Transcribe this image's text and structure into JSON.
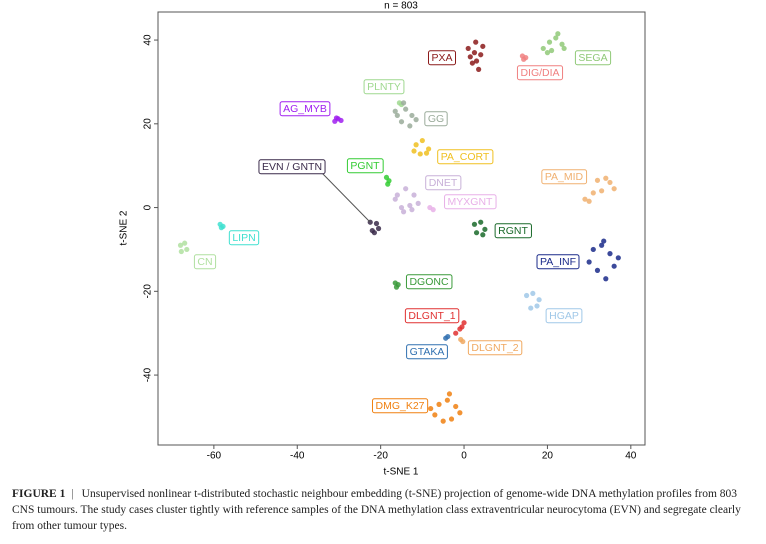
{
  "chart_data": {
    "type": "scatter",
    "title": "n = 803",
    "x_label": "t-SNE 1",
    "y_label": "t-SNE 2",
    "xlim": [
      -73.4,
      43.4
    ],
    "ylim": [
      -56.7,
      46.7
    ],
    "xticks": [
      -60,
      -40,
      -20,
      0,
      20,
      40
    ],
    "yticks": [
      -40,
      -20,
      0,
      20,
      40
    ],
    "series": [
      {
        "name": "PXA",
        "color": "#8b1a1a",
        "x": [
          1,
          2.5,
          4,
          3,
          2,
          3.5,
          1.5,
          4.5,
          2.8
        ],
        "y": [
          38,
          37,
          36.5,
          35,
          34.5,
          33,
          36,
          38.5,
          39.5
        ]
      },
      {
        "name": "DIG/DIA",
        "color": "#f08080",
        "x": [
          14,
          14.8,
          14.3
        ],
        "y": [
          36.2,
          35.8,
          35.4
        ]
      },
      {
        "name": "SEGA",
        "color": "#90c978",
        "x": [
          19,
          20.5,
          22,
          23.5,
          21,
          24,
          22.5,
          20
        ],
        "y": [
          38,
          39.5,
          40.5,
          39,
          37.5,
          38,
          41.5,
          37
        ]
      },
      {
        "name": "PLNTY",
        "color": "#9fd88f",
        "x": [
          -15.5,
          -15
        ],
        "y": [
          25,
          24.6
        ]
      },
      {
        "name": "GG",
        "color": "#9aab9a",
        "x": [
          -16,
          -14,
          -12.5,
          -15,
          -13,
          -14.5,
          -11.5,
          -16.5
        ],
        "y": [
          22,
          23.5,
          22,
          20.5,
          19.5,
          25,
          21,
          23
        ]
      },
      {
        "name": "AG_MYB",
        "color": "#a020f0",
        "x": [
          -31,
          -30.2,
          -29.5,
          -30.6
        ],
        "y": [
          20.6,
          21.2,
          20.8,
          21.4
        ]
      },
      {
        "name": "PA_CORT",
        "color": "#f0c020",
        "x": [
          -11.5,
          -10,
          -8.5,
          -10.5,
          -9,
          -12
        ],
        "y": [
          15,
          16,
          14,
          12.8,
          13,
          13.5
        ]
      },
      {
        "name": "PGNT",
        "color": "#33cc33",
        "x": [
          -18.6,
          -18,
          -18.3
        ],
        "y": [
          7.2,
          6.4,
          5.6
        ]
      },
      {
        "name": "DNET",
        "color": "#c8b0d8",
        "x": [
          -16,
          -14,
          -12,
          -13,
          -15,
          -11,
          -14.5,
          -12.5,
          -16.5
        ],
        "y": [
          3,
          4.5,
          3,
          0.5,
          0,
          1,
          -1,
          -0.5,
          2
        ]
      },
      {
        "name": "MYXGNT",
        "color": "#e8b0e8",
        "x": [
          -8.2,
          -7.4
        ],
        "y": [
          0,
          -0.5
        ]
      },
      {
        "name": "EVN / GNTN",
        "color": "#3a2a4a",
        "x": [
          -22.5,
          -21,
          -20.5,
          -22,
          -21.5
        ],
        "y": [
          -3.5,
          -3.8,
          -5,
          -5.5,
          -6
        ]
      },
      {
        "name": "LIPN",
        "color": "#40e0d0",
        "x": [
          -58.5,
          -57.8,
          -58.2
        ],
        "y": [
          -4,
          -4.5,
          -4.8
        ]
      },
      {
        "name": "CN",
        "color": "#b0e0a0",
        "x": [
          -68,
          -67,
          -66.5,
          -67.8
        ],
        "y": [
          -9,
          -8.5,
          -10,
          -10.5
        ]
      },
      {
        "name": "RGNT",
        "color": "#1a6a2a",
        "x": [
          2.5,
          4,
          5,
          3,
          4.5
        ],
        "y": [
          -4,
          -3.5,
          -5.2,
          -6,
          -6.5
        ]
      },
      {
        "name": "PA_MID",
        "color": "#f0b070",
        "x": [
          29,
          31,
          33,
          35,
          34,
          30,
          32,
          36
        ],
        "y": [
          2,
          3.5,
          4,
          6,
          7,
          1.5,
          6.5,
          4.5
        ]
      },
      {
        "name": "PA_INF",
        "color": "#1a2a8a",
        "x": [
          31,
          33,
          35,
          36,
          32,
          34,
          37,
          30,
          33.5
        ],
        "y": [
          -10,
          -9,
          -11,
          -14,
          -15,
          -17,
          -12,
          -13,
          -8
        ]
      },
      {
        "name": "HGAP",
        "color": "#a0c8e8",
        "x": [
          15,
          16.5,
          18,
          16,
          17.5
        ],
        "y": [
          -21,
          -20.5,
          -22,
          -24,
          -23.5
        ]
      },
      {
        "name": "DGONC",
        "color": "#3a9a3a",
        "x": [
          -16.5,
          -15.8,
          -16.2
        ],
        "y": [
          -18,
          -18.4,
          -19
        ]
      },
      {
        "name": "DLGNT_1",
        "color": "#e03030",
        "x": [
          -2,
          -1,
          0,
          -0.5
        ],
        "y": [
          -30,
          -29,
          -27.5,
          -28.5
        ]
      },
      {
        "name": "DLGNT_2",
        "color": "#f0a860",
        "x": [
          -0.8,
          -0.3
        ],
        "y": [
          -31.5,
          -32
        ]
      },
      {
        "name": "GTAKA",
        "color": "#3070b0",
        "x": [
          -4.4,
          -3.9
        ],
        "y": [
          -31.2,
          -30.8
        ]
      },
      {
        "name": "DMG_K27",
        "color": "#f08010",
        "x": [
          -8,
          -6,
          -4,
          -2,
          -1,
          -3,
          -5,
          -7,
          -3.5
        ],
        "y": [
          -48,
          -47,
          -46,
          -47.5,
          -49,
          -50.5,
          -51,
          -49.5,
          -44.5
        ]
      }
    ],
    "figure_label": "FIGURE 1",
    "figure_separator": "|",
    "caption": "Unsupervised nonlinear t-distributed stochastic neighbour embedding (t-SNE) projection of genome-wide DNA methylation profiles from 803 CNS tumours. The study cases cluster tightly with reference samples of the DNA methylation class extraventricular neurocytoma (EVN) and segregate clearly from other tumour types."
  }
}
